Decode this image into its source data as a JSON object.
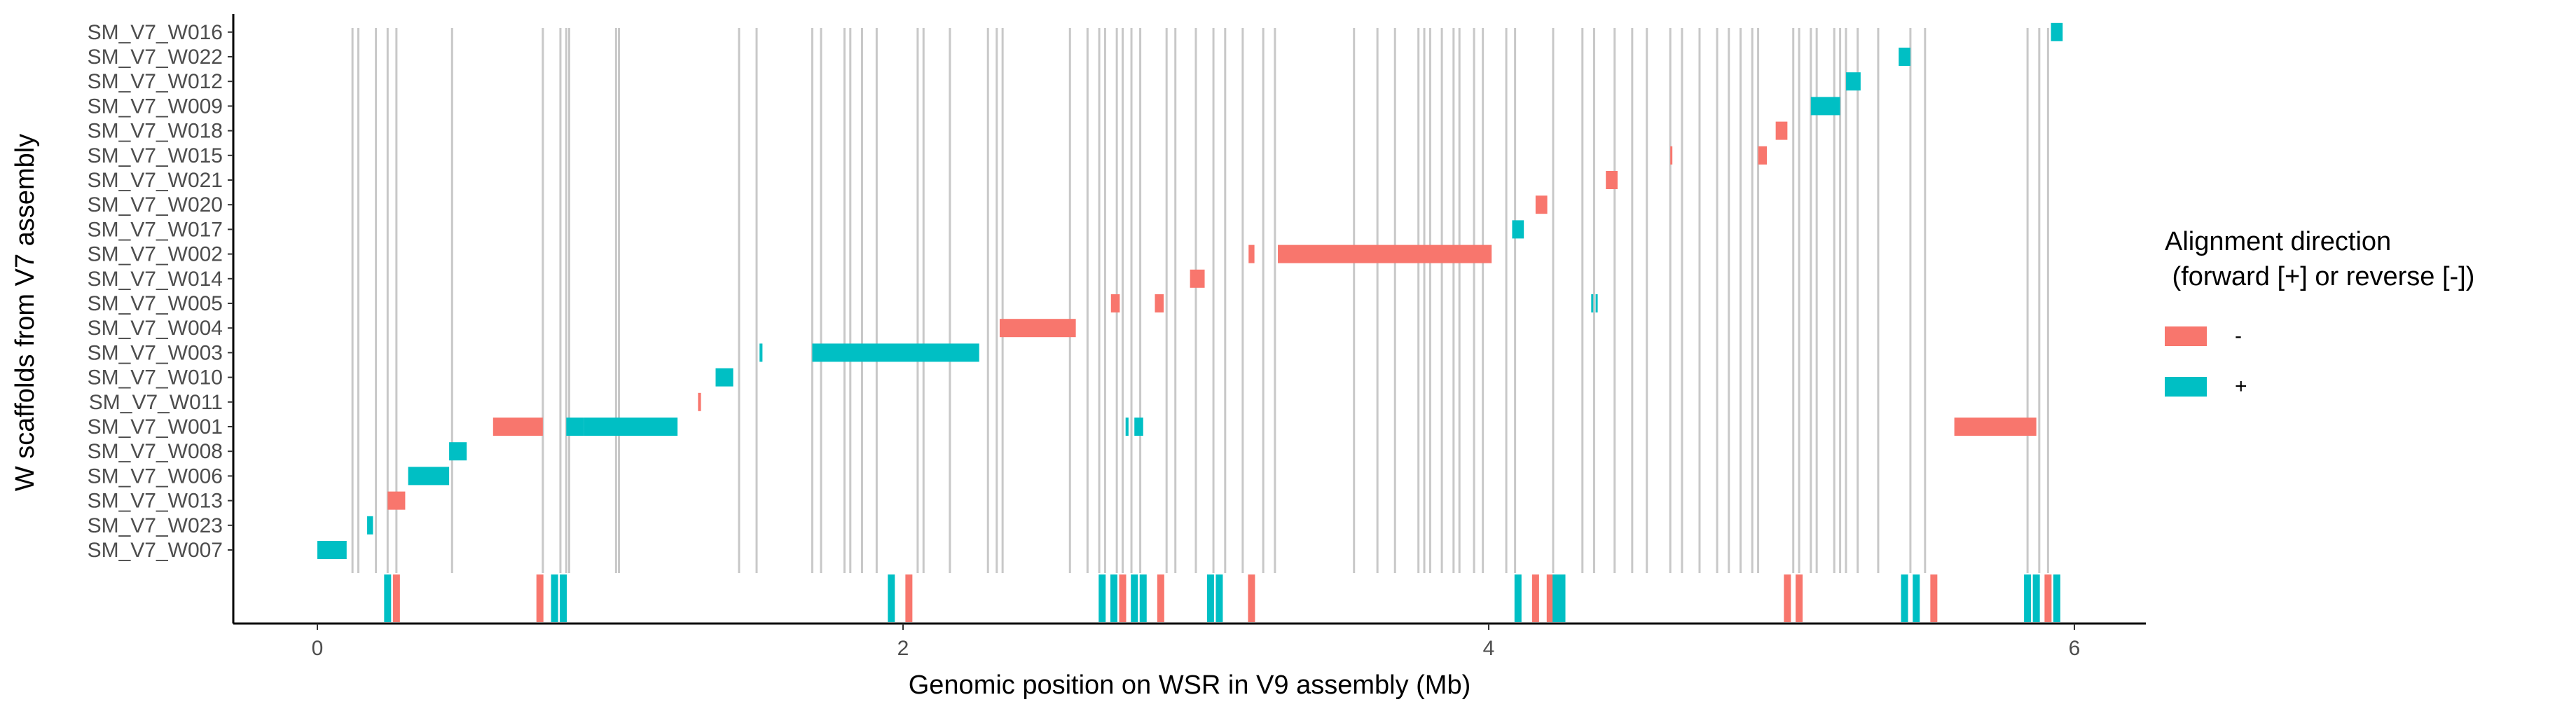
{
  "colors": {
    "reverse": "#F8766D",
    "forward": "#00BFC4",
    "breakpoint": "#C8C8C8"
  },
  "legend": {
    "title": "Alignment direction\n (forward [+] or reverse [-])",
    "items": [
      {
        "label": "-",
        "color": "#F8766D"
      },
      {
        "label": "+",
        "color": "#00BFC4"
      }
    ]
  },
  "chart_data": {
    "type": "alignment-map",
    "xlabel": "Genomic position on WSR in V9 assembly (Mb)",
    "ylabel": "W scaffolds from V7 assembly",
    "xlim": [
      -0.3,
      6.3
    ],
    "xticks": [
      0,
      2,
      4,
      6
    ],
    "categories": [
      "SM_V7_W007",
      "SM_V7_W023",
      "SM_V7_W013",
      "SM_V7_W006",
      "SM_V7_W008",
      "SM_V7_W001",
      "SM_V7_W011",
      "SM_V7_W010",
      "SM_V7_W003",
      "SM_V7_W004",
      "SM_V7_W005",
      "SM_V7_W014",
      "SM_V7_W002",
      "SM_V7_W017",
      "SM_V7_W020",
      "SM_V7_W021",
      "SM_V7_W015",
      "SM_V7_W018",
      "SM_V7_W009",
      "SM_V7_W012",
      "SM_V7_W022",
      "SM_V7_W016"
    ],
    "segments": [
      {
        "scaffold": "SM_V7_W007",
        "start": 0.0,
        "end": 0.1,
        "dir": "+"
      },
      {
        "scaffold": "SM_V7_W023",
        "start": 0.17,
        "end": 0.19,
        "dir": "+"
      },
      {
        "scaffold": "SM_V7_W013",
        "start": 0.24,
        "end": 0.3,
        "dir": "-"
      },
      {
        "scaffold": "SM_V7_W006",
        "start": 0.31,
        "end": 0.45,
        "dir": "+"
      },
      {
        "scaffold": "SM_V7_W008",
        "start": 0.45,
        "end": 0.51,
        "dir": "+"
      },
      {
        "scaffold": "SM_V7_W001",
        "start": 0.6,
        "end": 0.77,
        "dir": "-"
      },
      {
        "scaffold": "SM_V7_W001",
        "start": 0.85,
        "end": 0.91,
        "dir": "+"
      },
      {
        "scaffold": "SM_V7_W001",
        "start": 0.91,
        "end": 1.23,
        "dir": "+"
      },
      {
        "scaffold": "SM_V7_W001",
        "start": 2.76,
        "end": 2.77,
        "dir": "+"
      },
      {
        "scaffold": "SM_V7_W001",
        "start": 2.79,
        "end": 2.82,
        "dir": "+"
      },
      {
        "scaffold": "SM_V7_W001",
        "start": 5.59,
        "end": 5.87,
        "dir": "-"
      },
      {
        "scaffold": "SM_V7_W011",
        "start": 1.3,
        "end": 1.31,
        "dir": "-"
      },
      {
        "scaffold": "SM_V7_W010",
        "start": 1.36,
        "end": 1.42,
        "dir": "+"
      },
      {
        "scaffold": "SM_V7_W003",
        "start": 1.51,
        "end": 1.52,
        "dir": "+"
      },
      {
        "scaffold": "SM_V7_W003",
        "start": 1.69,
        "end": 2.26,
        "dir": "+"
      },
      {
        "scaffold": "SM_V7_W004",
        "start": 2.33,
        "end": 2.59,
        "dir": "-"
      },
      {
        "scaffold": "SM_V7_W005",
        "start": 2.71,
        "end": 2.74,
        "dir": "-"
      },
      {
        "scaffold": "SM_V7_W005",
        "start": 2.86,
        "end": 2.89,
        "dir": "-"
      },
      {
        "scaffold": "SM_V7_W005",
        "start": 4.35,
        "end": 4.355,
        "dir": "+"
      },
      {
        "scaffold": "SM_V7_W005",
        "start": 4.365,
        "end": 4.37,
        "dir": "+"
      },
      {
        "scaffold": "SM_V7_W014",
        "start": 2.98,
        "end": 3.03,
        "dir": "-"
      },
      {
        "scaffold": "SM_V7_W002",
        "start": 3.18,
        "end": 3.2,
        "dir": "-"
      },
      {
        "scaffold": "SM_V7_W002",
        "start": 3.28,
        "end": 4.01,
        "dir": "-"
      },
      {
        "scaffold": "SM_V7_W017",
        "start": 4.08,
        "end": 4.12,
        "dir": "+"
      },
      {
        "scaffold": "SM_V7_W020",
        "start": 4.16,
        "end": 4.2,
        "dir": "-"
      },
      {
        "scaffold": "SM_V7_W021",
        "start": 4.4,
        "end": 4.44,
        "dir": "-"
      },
      {
        "scaffold": "SM_V7_W015",
        "start": 4.62,
        "end": 4.625,
        "dir": "-"
      },
      {
        "scaffold": "SM_V7_W015",
        "start": 4.92,
        "end": 4.95,
        "dir": "-"
      },
      {
        "scaffold": "SM_V7_W018",
        "start": 4.98,
        "end": 5.02,
        "dir": "-"
      },
      {
        "scaffold": "SM_V7_W009",
        "start": 5.1,
        "end": 5.2,
        "dir": "+"
      },
      {
        "scaffold": "SM_V7_W012",
        "start": 5.22,
        "end": 5.27,
        "dir": "+"
      },
      {
        "scaffold": "SM_V7_W022",
        "start": 5.4,
        "end": 5.44,
        "dir": "+"
      },
      {
        "scaffold": "SM_V7_W016",
        "start": 5.92,
        "end": 5.96,
        "dir": "+"
      }
    ],
    "breakpoints": [
      0.12,
      0.14,
      0.2,
      0.24,
      0.27,
      0.46,
      0.77,
      0.83,
      0.85,
      0.86,
      1.02,
      1.03,
      1.44,
      1.5,
      1.69,
      1.72,
      1.8,
      1.82,
      1.86,
      1.91,
      2.05,
      2.07,
      2.16,
      2.29,
      2.32,
      2.34,
      2.57,
      2.63,
      2.67,
      2.69,
      2.73,
      2.75,
      2.78,
      2.81,
      2.9,
      2.93,
      3.0,
      3.06,
      3.1,
      3.16,
      3.23,
      3.27,
      3.54,
      3.62,
      3.68,
      3.76,
      3.78,
      3.8,
      3.84,
      3.88,
      3.9,
      3.95,
      3.98,
      4.06,
      4.09,
      4.22,
      4.32,
      4.36,
      4.43,
      4.49,
      4.54,
      4.62,
      4.66,
      4.72,
      4.78,
      4.82,
      4.86,
      4.9,
      4.92,
      5.04,
      5.06,
      5.1,
      5.12,
      5.18,
      5.2,
      5.22,
      5.26,
      5.33,
      5.44,
      5.49,
      5.84,
      5.88,
      5.91
    ],
    "bottom_ticks": [
      {
        "x": 0.24,
        "dir": "+"
      },
      {
        "x": 0.27,
        "dir": "-"
      },
      {
        "x": 0.76,
        "dir": "-"
      },
      {
        "x": 0.81,
        "dir": "+"
      },
      {
        "x": 0.84,
        "dir": "+"
      },
      {
        "x": 1.96,
        "dir": "+"
      },
      {
        "x": 2.02,
        "dir": "-"
      },
      {
        "x": 2.68,
        "dir": "+"
      },
      {
        "x": 2.72,
        "dir": "+"
      },
      {
        "x": 2.75,
        "dir": "-"
      },
      {
        "x": 2.79,
        "dir": "+"
      },
      {
        "x": 2.82,
        "dir": "+"
      },
      {
        "x": 2.88,
        "dir": "-"
      },
      {
        "x": 3.05,
        "dir": "+"
      },
      {
        "x": 3.08,
        "dir": "+"
      },
      {
        "x": 3.19,
        "dir": "-"
      },
      {
        "x": 4.1,
        "dir": "+"
      },
      {
        "x": 4.16,
        "dir": "-"
      },
      {
        "x": 4.21,
        "dir": "-"
      },
      {
        "x": 4.23,
        "dir": "+"
      },
      {
        "x": 4.25,
        "dir": "+"
      },
      {
        "x": 5.02,
        "dir": "-"
      },
      {
        "x": 5.06,
        "dir": "-"
      },
      {
        "x": 5.42,
        "dir": "+"
      },
      {
        "x": 5.46,
        "dir": "+"
      },
      {
        "x": 5.52,
        "dir": "-"
      },
      {
        "x": 5.84,
        "dir": "+"
      },
      {
        "x": 5.87,
        "dir": "+"
      },
      {
        "x": 5.91,
        "dir": "-"
      },
      {
        "x": 5.94,
        "dir": "+"
      }
    ]
  }
}
